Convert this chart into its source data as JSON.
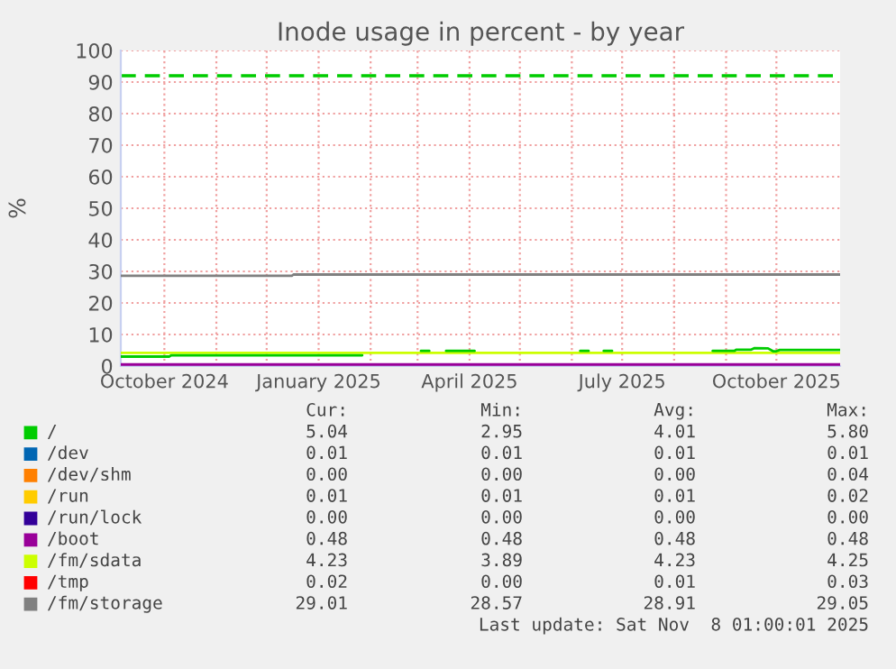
{
  "chart_data": {
    "type": "line",
    "title": "Inode usage in percent - by year",
    "ylabel": "%",
    "xlim": [
      "2024-09-05",
      "2025-11-08"
    ],
    "xticks": [
      {
        "value": "2024-10-01",
        "label": "October 2024"
      },
      {
        "value": "2024-11-01",
        "label": null
      },
      {
        "value": "2024-12-01",
        "label": null
      },
      {
        "value": "2025-01-01",
        "label": "January 2025"
      },
      {
        "value": "2025-02-01",
        "label": null
      },
      {
        "value": "2025-03-01",
        "label": null
      },
      {
        "value": "2025-04-01",
        "label": "April 2025"
      },
      {
        "value": "2025-05-01",
        "label": null
      },
      {
        "value": "2025-06-01",
        "label": null
      },
      {
        "value": "2025-07-01",
        "label": "July 2025"
      },
      {
        "value": "2025-08-01",
        "label": null
      },
      {
        "value": "2025-09-01",
        "label": null
      },
      {
        "value": "2025-10-01",
        "label": "October 2025"
      }
    ],
    "ylim": [
      0,
      100
    ],
    "yticks": [
      0,
      10,
      20,
      30,
      40,
      50,
      60,
      70,
      80,
      90,
      100
    ],
    "grid": true,
    "legend": "bottom",
    "line_style": "solid",
    "ref_lines": [
      {
        "axis": "y",
        "value": 92,
        "color": "#00cc00",
        "line_style": "dashed"
      }
    ],
    "series": [
      {
        "name": "/",
        "color": "#00cc00",
        "x": [
          "2024-09-05",
          "2024-10-04",
          "2024-10-05",
          "2025-01-27",
          "2025-01-28",
          "2025-03-02",
          "2025-03-03",
          "2025-03-08",
          "2025-03-09",
          "2025-03-18",
          "2025-04-04",
          "2025-04-05",
          "2025-06-06",
          "2025-06-11",
          "2025-06-12",
          "2025-06-20",
          "2025-06-25",
          "2025-06-26",
          "2025-08-24",
          "2025-09-06",
          "2025-09-07",
          "2025-09-16",
          "2025-09-18",
          "2025-09-26",
          "2025-09-29",
          "2025-10-01",
          "2025-10-03",
          "2025-11-08"
        ],
        "values": [
          3.0,
          3.0,
          3.4,
          3.4,
          null,
          null,
          4.8,
          4.8,
          null,
          4.8,
          4.8,
          null,
          4.8,
          4.8,
          null,
          4.8,
          4.8,
          null,
          4.8,
          4.8,
          5.2,
          5.2,
          5.7,
          5.6,
          4.7,
          4.7,
          5.1,
          5.1
        ]
      },
      {
        "name": "/dev",
        "color": "#0066b3"
      },
      {
        "name": "/dev/shm",
        "color": "#ff8000"
      },
      {
        "name": "/run",
        "color": "#ffcc00"
      },
      {
        "name": "/run/lock",
        "color": "#330099"
      },
      {
        "name": "/boot",
        "color": "#990099",
        "x": [
          "2024-09-05",
          "2025-11-08"
        ],
        "values": [
          0.5,
          0.5
        ]
      },
      {
        "name": "/fm/sdata",
        "color": "#ccff00",
        "x": [
          "2024-09-05",
          "2025-11-08"
        ],
        "values": [
          4.2,
          4.2
        ]
      },
      {
        "name": "/tmp",
        "color": "#ff0000"
      },
      {
        "name": "/fm/storage",
        "color": "#808080",
        "x": [
          "2024-09-05",
          "2024-12-16",
          "2024-12-17",
          "2025-11-08"
        ],
        "values": [
          28.6,
          28.6,
          29.0,
          29.0
        ]
      }
    ],
    "annotations": [
      "Cur:",
      "Min:",
      "Avg:",
      "Max:",
      "5.04",
      "2.95",
      "4.01",
      "5.80",
      "0.01",
      "0.01",
      "0.01",
      "0.01",
      "0.00",
      "0.00",
      "0.00",
      "0.04",
      "0.01",
      "0.01",
      "0.01",
      "0.02",
      "0.00",
      "0.00",
      "0.00",
      "0.00",
      "0.48",
      "0.48",
      "0.48",
      "0.48",
      "4.23",
      "3.89",
      "4.23",
      "4.25",
      "0.02",
      "0.00",
      "0.01",
      "0.03",
      "29.01",
      "28.57",
      "28.91",
      "29.05",
      "Last update: Sat Nov  8 01:00:01 2025"
    ]
  }
}
